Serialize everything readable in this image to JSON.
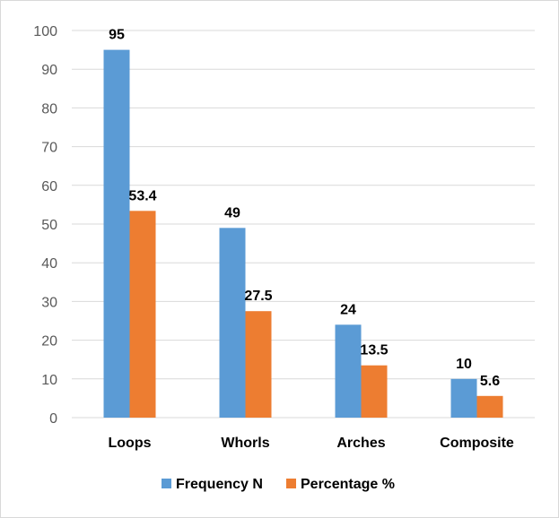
{
  "chart_data": {
    "type": "bar",
    "title": "",
    "xlabel": "",
    "ylabel": "",
    "categories": [
      "Loops",
      "Whorls",
      "Arches",
      "Composite"
    ],
    "series": [
      {
        "name": "Frequency N",
        "values": [
          95,
          49,
          24,
          10
        ],
        "labels": [
          "95",
          "49",
          "24",
          "10"
        ],
        "color": "#5b9bd5"
      },
      {
        "name": "Percentage %",
        "values": [
          53.4,
          27.5,
          13.5,
          5.6
        ],
        "labels": [
          "53.4",
          "27.5",
          "13.5",
          "5.6"
        ],
        "color": "#ed7d31"
      }
    ],
    "ylim": [
      0,
      100
    ],
    "yticks": [
      0,
      10,
      20,
      30,
      40,
      50,
      60,
      70,
      80,
      90,
      100
    ],
    "ytick_labels": [
      "0",
      "10",
      "20",
      "30",
      "40",
      "50",
      "60",
      "70",
      "80",
      "90",
      "100"
    ],
    "grid": true,
    "legend_position": "bottom"
  }
}
